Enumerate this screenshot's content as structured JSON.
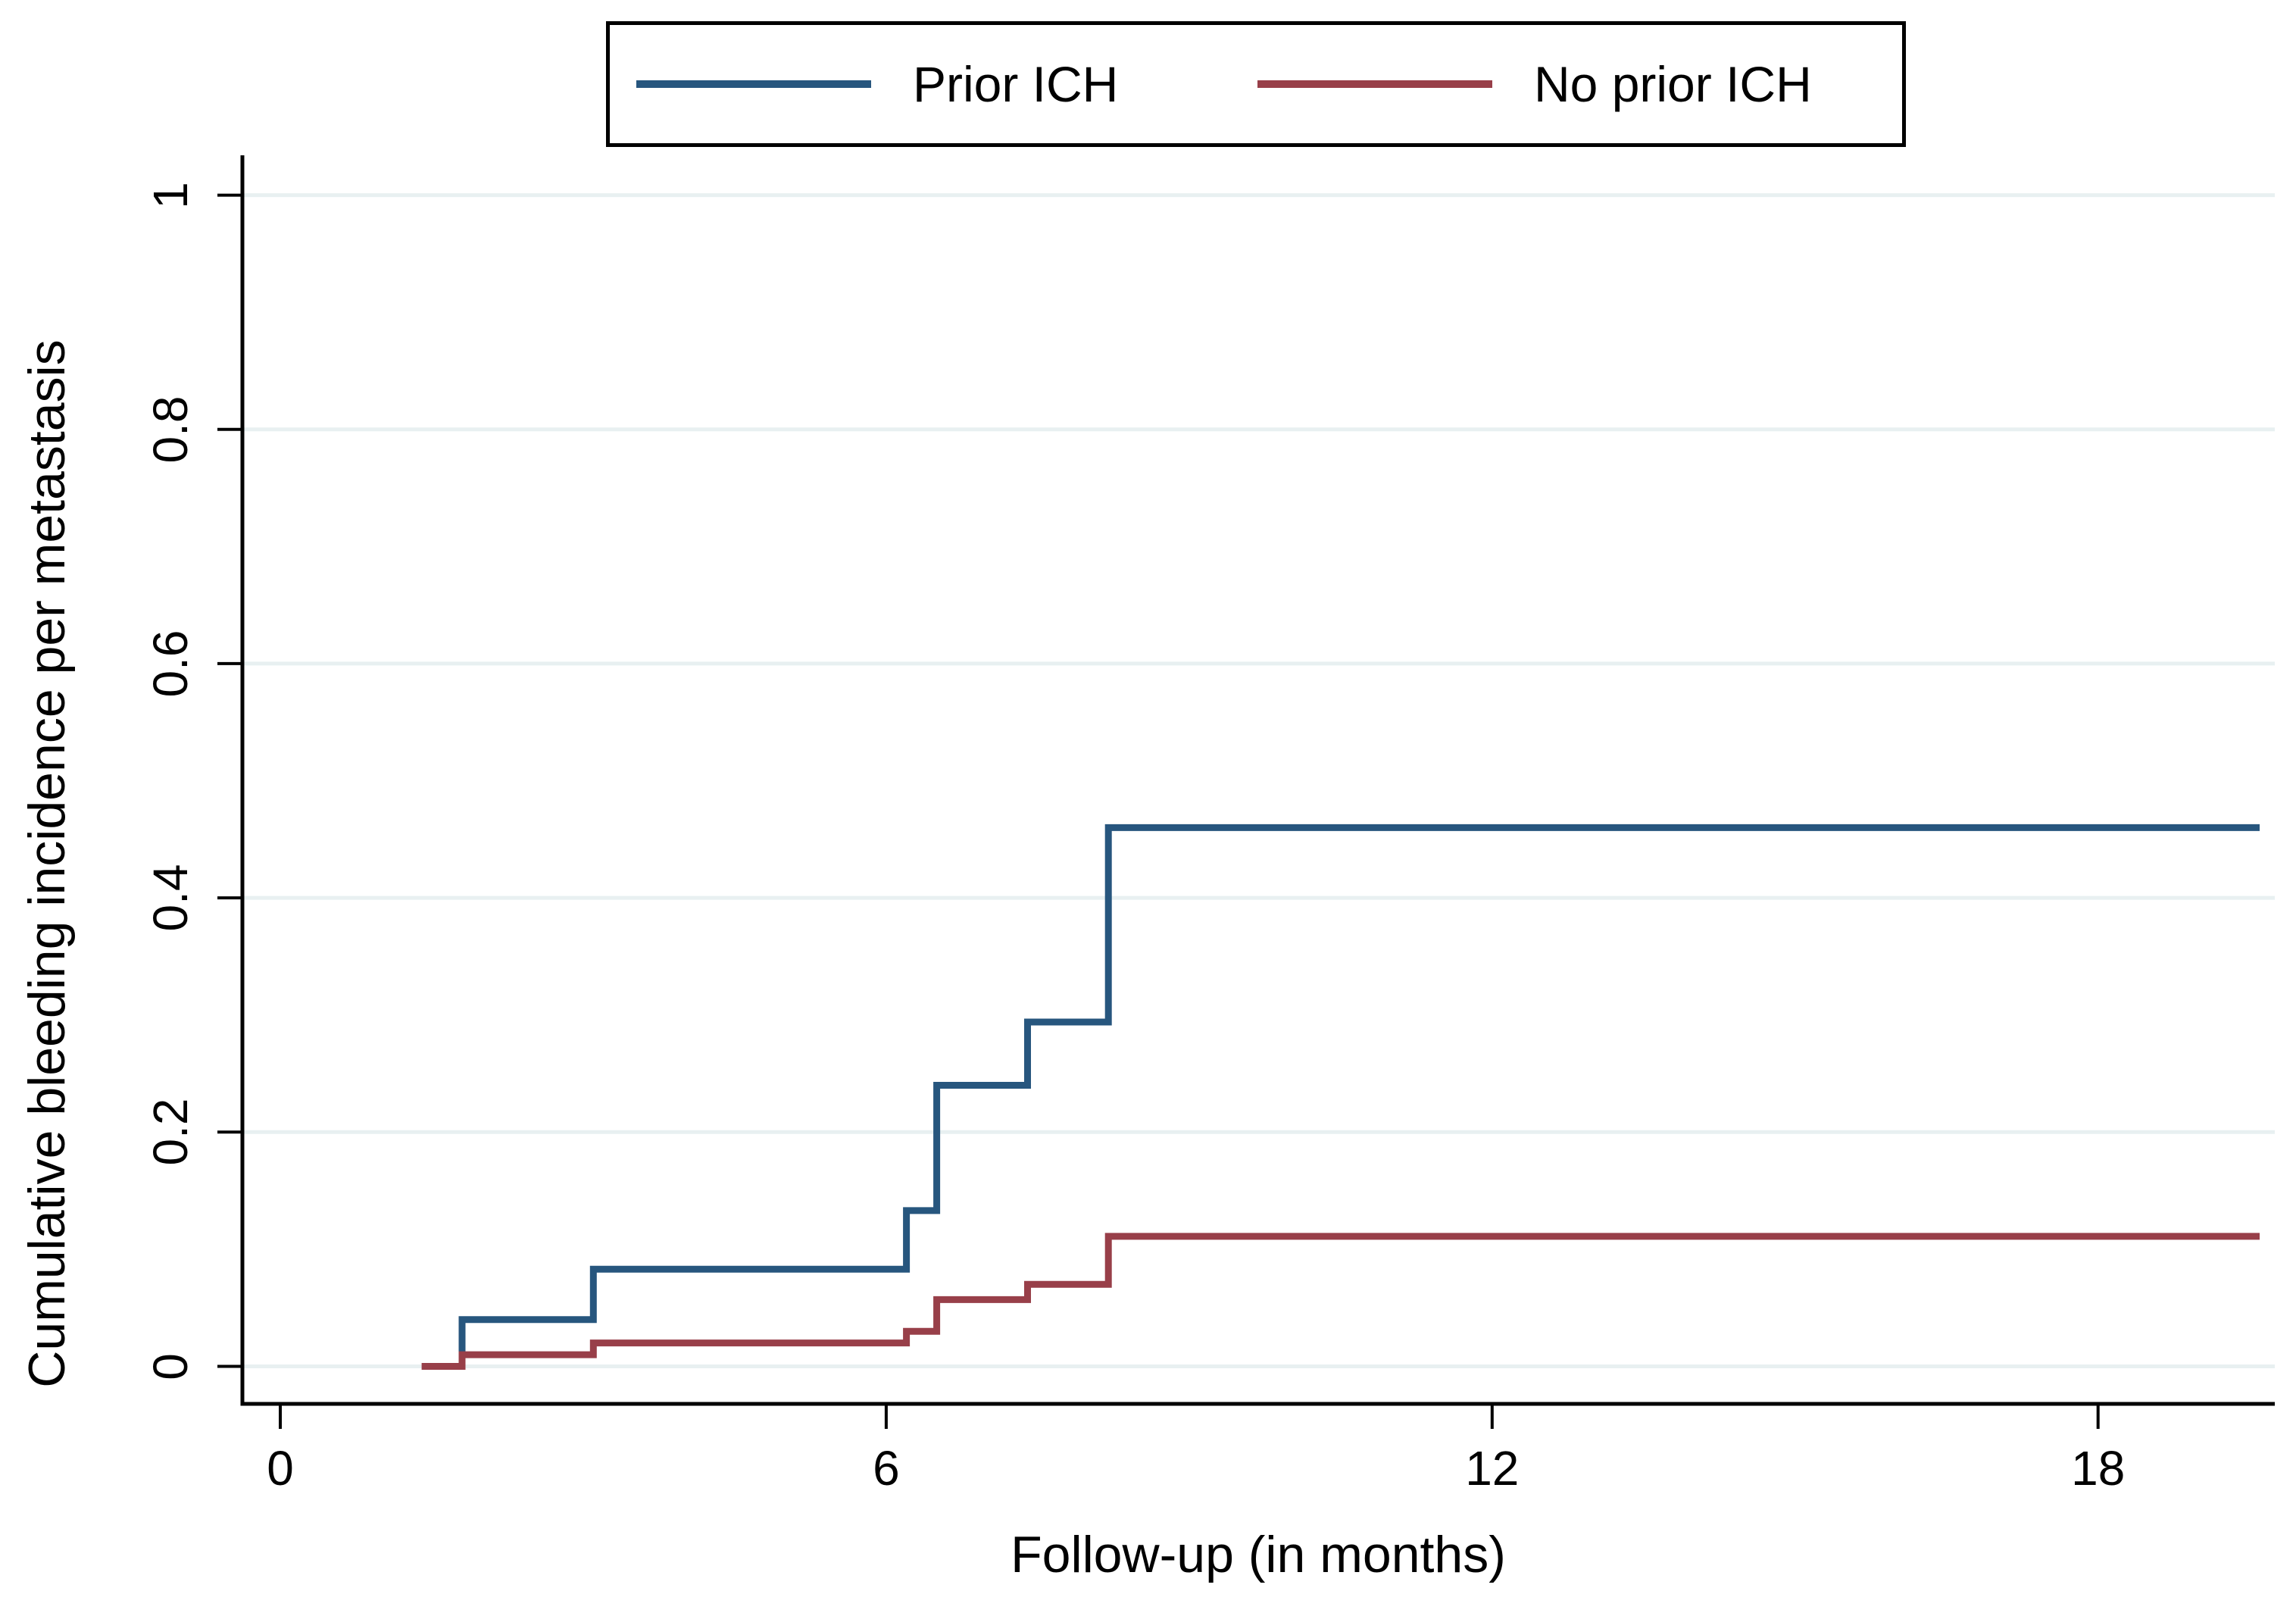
{
  "figure": {
    "background": "#ffffff"
  },
  "colors": {
    "grid": "#e8f0f1",
    "axis": "#000000",
    "text": "#000000",
    "prior_ich_line": "#27567e",
    "no_prior_ich_line": "#983f49"
  },
  "chart_data": {
    "type": "line",
    "subtype": "step-cumulative-incidence",
    "title": "",
    "xlabel": "Follow-up (in months)",
    "ylabel": "Cumulative bleeding incidence per metastasis",
    "xlim": [
      -0.375,
      19.75
    ],
    "ylim": [
      -0.032,
      1.034
    ],
    "xticks": [
      0,
      6,
      12,
      18
    ],
    "xtick_labels": [
      "0",
      "6",
      "12",
      "18"
    ],
    "yticks": [
      0,
      0.2,
      0.4,
      0.6,
      0.8,
      1
    ],
    "ytick_labels": [
      "0",
      "0.2",
      "0.4",
      "0.6",
      "0.8",
      "1"
    ],
    "grid": "horizontal-only",
    "legend_position": "top-center-boxed",
    "series": [
      {
        "name": "Prior ICH",
        "color": "#27567e",
        "step_times_months": [
          1.8,
          3.1,
          6.2,
          6.5,
          7.4,
          8.2
        ],
        "step_values": [
          0.04,
          0.083,
          0.133,
          0.24,
          0.294,
          0.46
        ],
        "end_month": 19.6,
        "points": [
          [
            1.8,
            0
          ],
          [
            1.8,
            0.04
          ],
          [
            3.1,
            0.04
          ],
          [
            3.1,
            0.083
          ],
          [
            6.2,
            0.083
          ],
          [
            6.2,
            0.133
          ],
          [
            6.5,
            0.133
          ],
          [
            6.5,
            0.24
          ],
          [
            7.4,
            0.24
          ],
          [
            7.4,
            0.294
          ],
          [
            8.2,
            0.294
          ],
          [
            8.2,
            0.46
          ],
          [
            19.6,
            0.46
          ]
        ]
      },
      {
        "name": "No prior ICH",
        "color": "#983f49",
        "step_times_months": [
          1.8,
          3.1,
          6.2,
          6.5,
          7.4,
          8.2
        ],
        "step_values": [
          0.01,
          0.02,
          0.03,
          0.057,
          0.07,
          0.111
        ],
        "end_month": 19.6,
        "points": [
          [
            1.4,
            0
          ],
          [
            1.8,
            0
          ],
          [
            1.8,
            0.01
          ],
          [
            3.1,
            0.01
          ],
          [
            3.1,
            0.02
          ],
          [
            6.2,
            0.02
          ],
          [
            6.2,
            0.03
          ],
          [
            6.5,
            0.03
          ],
          [
            6.5,
            0.057
          ],
          [
            7.4,
            0.057
          ],
          [
            7.4,
            0.07
          ],
          [
            8.2,
            0.07
          ],
          [
            8.2,
            0.111
          ],
          [
            19.6,
            0.111
          ]
        ]
      }
    ]
  }
}
